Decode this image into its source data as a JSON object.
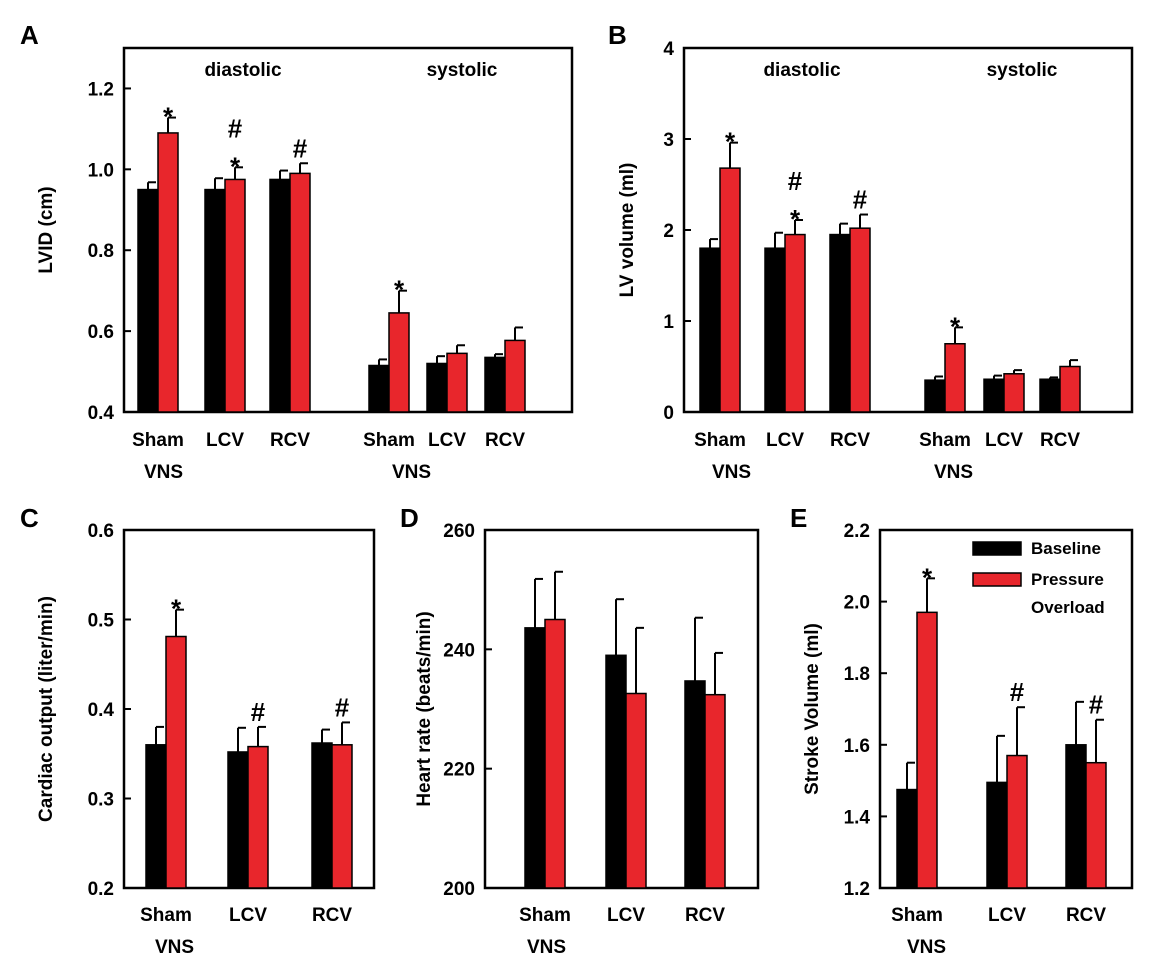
{
  "chart_data": [
    {
      "panel": "A",
      "type": "bar",
      "ylabel": "LVID (cm)",
      "ylim": [
        0.4,
        1.3
      ],
      "yticks": [
        0.4,
        0.6,
        0.8,
        1.0,
        1.2
      ],
      "ytick_labels": [
        "0.4",
        "0.6",
        "0.8",
        "1.0",
        "1.2"
      ],
      "groups": [
        "diastolic",
        "systolic"
      ],
      "categories": [
        "Sham",
        "LCV",
        "RCV",
        "Sham",
        "LCV",
        "RCV"
      ],
      "xlabel_under_first": "VNS",
      "vns_labels": [
        "VNS",
        "VNS"
      ],
      "series": [
        {
          "name": "Baseline",
          "color": "#000000",
          "values": [
            0.95,
            0.95,
            0.975,
            0.515,
            0.52,
            0.535
          ],
          "errors": [
            0.018,
            0.028,
            0.022,
            0.015,
            0.018,
            0.008
          ]
        },
        {
          "name": "Pressure Overload",
          "color": "#e8262c",
          "values": [
            1.09,
            0.975,
            0.99,
            0.645,
            0.545,
            0.577
          ],
          "errors": [
            0.038,
            0.03,
            0.025,
            0.055,
            0.02,
            0.032
          ]
        }
      ],
      "annotations": [
        {
          "cat": 0,
          "series": 1,
          "marks": [
            "*"
          ]
        },
        {
          "cat": 1,
          "series": 1,
          "marks": [
            "#",
            "*"
          ]
        },
        {
          "cat": 2,
          "series": 1,
          "marks": [
            "#"
          ]
        },
        {
          "cat": 3,
          "series": 1,
          "marks": [
            "*"
          ]
        }
      ]
    },
    {
      "panel": "B",
      "type": "bar",
      "ylabel": "LV volume (ml)",
      "ylim": [
        0,
        4
      ],
      "yticks": [
        0,
        1,
        2,
        3,
        4
      ],
      "ytick_labels": [
        "0",
        "1",
        "2",
        "3",
        "4"
      ],
      "groups": [
        "diastolic",
        "systolic"
      ],
      "categories": [
        "Sham",
        "LCV",
        "RCV",
        "Sham",
        "LCV",
        "RCV"
      ],
      "vns_labels": [
        "VNS",
        "VNS"
      ],
      "series": [
        {
          "name": "Baseline",
          "color": "#000000",
          "values": [
            1.8,
            1.8,
            1.95,
            0.35,
            0.36,
            0.36
          ],
          "errors": [
            0.1,
            0.17,
            0.12,
            0.04,
            0.04,
            0.02
          ]
        },
        {
          "name": "Pressure Overload",
          "color": "#e8262c",
          "values": [
            2.68,
            1.95,
            2.02,
            0.75,
            0.42,
            0.5
          ],
          "errors": [
            0.28,
            0.16,
            0.15,
            0.18,
            0.04,
            0.07
          ]
        }
      ],
      "annotations": [
        {
          "cat": 0,
          "series": 1,
          "marks": [
            "*"
          ]
        },
        {
          "cat": 1,
          "series": 1,
          "marks": [
            "#",
            "*"
          ]
        },
        {
          "cat": 2,
          "series": 1,
          "marks": [
            "#"
          ]
        },
        {
          "cat": 3,
          "series": 1,
          "marks": [
            "*"
          ]
        }
      ]
    },
    {
      "panel": "C",
      "type": "bar",
      "ylabel": "Cardiac output (liter/min)",
      "ylim": [
        0.2,
        0.6
      ],
      "yticks": [
        0.2,
        0.3,
        0.4,
        0.5,
        0.6
      ],
      "ytick_labels": [
        "0.2",
        "0.3",
        "0.4",
        "0.5",
        "0.6"
      ],
      "categories": [
        "Sham",
        "LCV",
        "RCV"
      ],
      "vns_labels": [
        "VNS"
      ],
      "series": [
        {
          "name": "Baseline",
          "color": "#000000",
          "values": [
            0.36,
            0.352,
            0.362
          ],
          "errors": [
            0.02,
            0.027,
            0.015
          ]
        },
        {
          "name": "Pressure Overload",
          "color": "#e8262c",
          "values": [
            0.481,
            0.358,
            0.36
          ],
          "errors": [
            0.03,
            0.022,
            0.025
          ]
        }
      ],
      "annotations": [
        {
          "cat": 0,
          "series": 1,
          "marks": [
            "*"
          ]
        },
        {
          "cat": 1,
          "series": 1,
          "marks": [
            "#"
          ]
        },
        {
          "cat": 2,
          "series": 1,
          "marks": [
            "#"
          ]
        }
      ]
    },
    {
      "panel": "D",
      "type": "bar",
      "ylabel": "Heart rate (beats/min)",
      "ylim": [
        200,
        260
      ],
      "yticks": [
        200,
        220,
        240,
        260
      ],
      "ytick_labels": [
        "200",
        "220",
        "240",
        "260"
      ],
      "categories": [
        "Sham",
        "LCV",
        "RCV"
      ],
      "vns_labels": [
        "VNS"
      ],
      "series": [
        {
          "name": "Baseline",
          "color": "#000000",
          "values": [
            243.6,
            239,
            234.7
          ],
          "errors": [
            8.2,
            9.4,
            10.6
          ]
        },
        {
          "name": "Pressure Overload",
          "color": "#e8262c",
          "values": [
            245,
            232.6,
            232.4
          ],
          "errors": [
            8,
            11,
            7
          ]
        }
      ],
      "annotations": []
    },
    {
      "panel": "E",
      "type": "bar",
      "ylabel": "Stroke Volume (ml)",
      "ylim": [
        1.2,
        2.2
      ],
      "yticks": [
        1.2,
        1.4,
        1.6,
        1.8,
        2.0,
        2.2
      ],
      "ytick_labels": [
        "1.2",
        "1.4",
        "1.6",
        "1.8",
        "2.0",
        "2.2"
      ],
      "categories": [
        "Sham",
        "LCV",
        "RCV"
      ],
      "vns_labels": [
        "VNS"
      ],
      "legend": [
        "Baseline",
        "Pressure",
        "Overload"
      ],
      "series": [
        {
          "name": "Baseline",
          "color": "#000000",
          "values": [
            1.475,
            1.495,
            1.6
          ],
          "errors": [
            0.075,
            0.13,
            0.12
          ]
        },
        {
          "name": "Pressure Overload",
          "color": "#e8262c",
          "values": [
            1.97,
            1.57,
            1.55
          ],
          "errors": [
            0.095,
            0.135,
            0.12
          ]
        }
      ],
      "annotations": [
        {
          "cat": 0,
          "series": 1,
          "marks": [
            "*"
          ]
        },
        {
          "cat": 1,
          "series": 1,
          "marks": [
            "#"
          ]
        },
        {
          "cat": 2,
          "series": 1,
          "marks": [
            "#"
          ]
        }
      ]
    }
  ]
}
